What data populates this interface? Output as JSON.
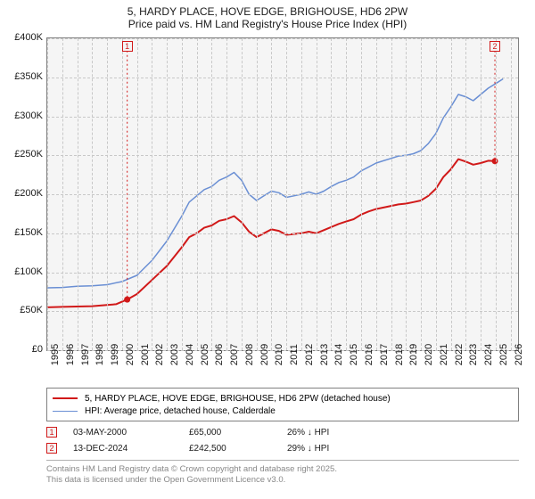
{
  "title": {
    "line1": "5, HARDY PLACE, HOVE EDGE, BRIGHOUSE, HD6 2PW",
    "line2": "Price paid vs. HM Land Registry's House Price Index (HPI)"
  },
  "chart": {
    "type": "line",
    "background_color": "#f5f5f5",
    "border_color": "#808080",
    "grid_color": "#c8c8c8",
    "xlim": [
      1995,
      2026.5
    ],
    "ylim": [
      0,
      400000
    ],
    "yticks": [
      0,
      50000,
      100000,
      150000,
      200000,
      250000,
      300000,
      350000,
      400000
    ],
    "ytick_labels": [
      "£0",
      "£50K",
      "£100K",
      "£150K",
      "£200K",
      "£250K",
      "£300K",
      "£350K",
      "£400K"
    ],
    "xticks": [
      1995,
      1996,
      1997,
      1998,
      1999,
      2000,
      2001,
      2002,
      2003,
      2004,
      2005,
      2006,
      2007,
      2008,
      2009,
      2010,
      2011,
      2012,
      2013,
      2014,
      2015,
      2016,
      2017,
      2018,
      2019,
      2020,
      2021,
      2022,
      2023,
      2024,
      2025,
      2026
    ],
    "label_fontsize": 11,
    "title_fontsize": 12,
    "text_color": "#1a1a1a",
    "series": [
      {
        "name": "price_paid",
        "label": "5, HARDY PLACE, HOVE EDGE, BRIGHOUSE, HD6 2PW (detached house)",
        "color": "#d11919",
        "line_width": 2,
        "points": [
          [
            1995,
            55000
          ],
          [
            1996,
            55500
          ],
          [
            1997,
            56000
          ],
          [
            1998,
            56500
          ],
          [
            1999,
            58000
          ],
          [
            1999.6,
            59000
          ],
          [
            2000.35,
            65000
          ],
          [
            2001,
            72000
          ],
          [
            2002,
            90000
          ],
          [
            2003,
            108000
          ],
          [
            2004,
            132000
          ],
          [
            2004.5,
            145000
          ],
          [
            2005,
            150000
          ],
          [
            2005.5,
            157000
          ],
          [
            2006,
            160000
          ],
          [
            2006.5,
            166000
          ],
          [
            2007,
            168000
          ],
          [
            2007.5,
            172000
          ],
          [
            2008,
            164000
          ],
          [
            2008.5,
            152000
          ],
          [
            2009,
            145000
          ],
          [
            2009.5,
            150000
          ],
          [
            2010,
            155000
          ],
          [
            2010.5,
            153000
          ],
          [
            2011,
            148000
          ],
          [
            2011.5,
            149000
          ],
          [
            2012,
            150000
          ],
          [
            2012.5,
            152000
          ],
          [
            2013,
            150000
          ],
          [
            2013.5,
            154000
          ],
          [
            2014,
            158000
          ],
          [
            2014.5,
            162000
          ],
          [
            2015,
            165000
          ],
          [
            2015.5,
            168000
          ],
          [
            2016,
            174000
          ],
          [
            2016.5,
            178000
          ],
          [
            2017,
            181000
          ],
          [
            2017.5,
            183000
          ],
          [
            2018,
            185000
          ],
          [
            2018.5,
            187000
          ],
          [
            2019,
            188000
          ],
          [
            2019.5,
            190000
          ],
          [
            2020,
            192000
          ],
          [
            2020.5,
            198000
          ],
          [
            2021,
            207000
          ],
          [
            2021.5,
            222000
          ],
          [
            2022,
            232000
          ],
          [
            2022.5,
            245000
          ],
          [
            2023,
            242000
          ],
          [
            2023.5,
            238000
          ],
          [
            2024,
            240000
          ],
          [
            2024.5,
            243000
          ],
          [
            2024.95,
            242500
          ]
        ]
      },
      {
        "name": "hpi",
        "label": "HPI: Average price, detached house, Calderdale",
        "color": "#6a8fd4",
        "line_width": 1.5,
        "points": [
          [
            1995,
            80000
          ],
          [
            1996,
            80500
          ],
          [
            1997,
            82000
          ],
          [
            1998,
            82500
          ],
          [
            1999,
            84000
          ],
          [
            2000,
            88000
          ],
          [
            2001,
            96000
          ],
          [
            2002,
            115000
          ],
          [
            2003,
            140000
          ],
          [
            2004,
            172000
          ],
          [
            2004.5,
            190000
          ],
          [
            2005,
            198000
          ],
          [
            2005.5,
            206000
          ],
          [
            2006,
            210000
          ],
          [
            2006.5,
            218000
          ],
          [
            2007,
            222000
          ],
          [
            2007.5,
            228000
          ],
          [
            2008,
            218000
          ],
          [
            2008.5,
            200000
          ],
          [
            2009,
            192000
          ],
          [
            2009.5,
            198000
          ],
          [
            2010,
            204000
          ],
          [
            2010.5,
            202000
          ],
          [
            2011,
            196000
          ],
          [
            2011.5,
            198000
          ],
          [
            2012,
            200000
          ],
          [
            2012.5,
            203000
          ],
          [
            2013,
            200000
          ],
          [
            2013.5,
            204000
          ],
          [
            2014,
            210000
          ],
          [
            2014.5,
            215000
          ],
          [
            2015,
            218000
          ],
          [
            2015.5,
            222000
          ],
          [
            2016,
            230000
          ],
          [
            2016.5,
            235000
          ],
          [
            2017,
            240000
          ],
          [
            2017.5,
            243000
          ],
          [
            2018,
            246000
          ],
          [
            2018.5,
            249000
          ],
          [
            2019,
            250000
          ],
          [
            2019.5,
            252000
          ],
          [
            2020,
            256000
          ],
          [
            2020.5,
            265000
          ],
          [
            2021,
            278000
          ],
          [
            2021.5,
            298000
          ],
          [
            2022,
            312000
          ],
          [
            2022.5,
            328000
          ],
          [
            2023,
            325000
          ],
          [
            2023.5,
            320000
          ],
          [
            2024,
            328000
          ],
          [
            2024.5,
            336000
          ],
          [
            2025,
            342000
          ],
          [
            2025.5,
            348000
          ]
        ]
      }
    ],
    "markers": [
      {
        "n": "1",
        "x": 2000.35,
        "y_top": 390000,
        "y_dot": 65000
      },
      {
        "n": "2",
        "x": 2024.95,
        "y_top": 390000,
        "y_dot": 242500
      }
    ]
  },
  "legend": {
    "border_color": "#808080",
    "bg_color": "#ffffff"
  },
  "sales_table": {
    "rows": [
      {
        "marker": "1",
        "date": "03-MAY-2000",
        "price": "£65,000",
        "delta": "26% ↓ HPI"
      },
      {
        "marker": "2",
        "date": "13-DEC-2024",
        "price": "£242,500",
        "delta": "29% ↓ HPI"
      }
    ]
  },
  "footer": {
    "line1": "Contains HM Land Registry data © Crown copyright and database right 2025.",
    "line2": "This data is licensed under the Open Government Licence v3.0.",
    "color": "#888888"
  }
}
